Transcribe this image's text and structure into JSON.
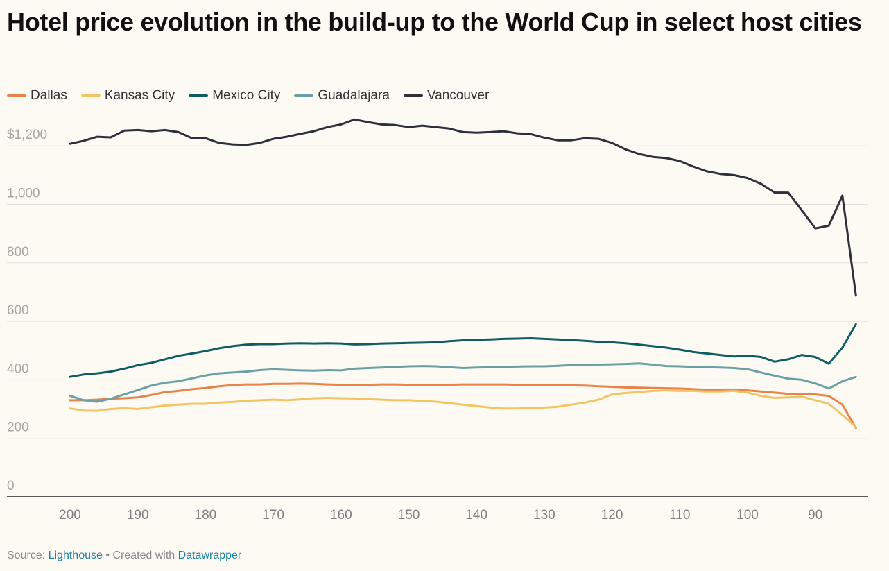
{
  "chart_data": {
    "type": "line",
    "title": "Hotel price evolution in the build-up to the World Cup in select host cities",
    "xlabel": "",
    "ylabel": "",
    "xlim": [
      200,
      84
    ],
    "ylim": [
      0,
      1300
    ],
    "x_ticks": [
      200,
      190,
      180,
      170,
      160,
      150,
      140,
      130,
      120,
      110,
      100,
      90
    ],
    "x_tick_labels": [
      "200",
      "190",
      "180",
      "170",
      "160",
      "150",
      "140",
      "130",
      "120",
      "110",
      "100",
      "90"
    ],
    "y_ticks": [
      0,
      200,
      400,
      600,
      800,
      1000,
      1200
    ],
    "y_tick_labels": [
      "0",
      "200",
      "400",
      "600",
      "800",
      "1,000",
      "$1,200"
    ],
    "grid": true,
    "legend_position": "top-left",
    "x": [
      200,
      198,
      196,
      194,
      192,
      190,
      188,
      186,
      184,
      182,
      180,
      178,
      176,
      174,
      172,
      170,
      168,
      166,
      164,
      162,
      160,
      158,
      156,
      154,
      152,
      150,
      148,
      146,
      144,
      142,
      140,
      138,
      136,
      134,
      132,
      130,
      128,
      126,
      124,
      122,
      120,
      118,
      116,
      114,
      112,
      110,
      108,
      106,
      104,
      102,
      100,
      98,
      96,
      94,
      92,
      90,
      88,
      86,
      84
    ],
    "series": [
      {
        "name": "Dallas",
        "color": "#e8834a",
        "values": [
          330,
          330,
          332,
          335,
          337,
          340,
          348,
          358,
          362,
          368,
          372,
          378,
          382,
          384,
          384,
          386,
          386,
          387,
          386,
          384,
          383,
          382,
          383,
          384,
          384,
          383,
          382,
          382,
          383,
          384,
          384,
          384,
          384,
          383,
          383,
          382,
          382,
          381,
          380,
          378,
          376,
          374,
          373,
          372,
          371,
          370,
          368,
          366,
          365,
          365,
          364,
          360,
          356,
          352,
          350,
          350,
          345,
          315,
          235
        ]
      },
      {
        "name": "Kansas City",
        "color": "#f2c464",
        "values": [
          302,
          295,
          294,
          300,
          303,
          300,
          306,
          312,
          315,
          318,
          318,
          322,
          324,
          328,
          330,
          332,
          330,
          333,
          337,
          338,
          337,
          336,
          334,
          332,
          330,
          330,
          328,
          325,
          320,
          315,
          310,
          305,
          302,
          302,
          304,
          305,
          308,
          315,
          322,
          332,
          350,
          355,
          358,
          362,
          364,
          362,
          362,
          360,
          360,
          362,
          356,
          345,
          338,
          340,
          342,
          330,
          318,
          280,
          238
        ]
      },
      {
        "name": "Mexico City",
        "color": "#0f5c63",
        "values": [
          410,
          418,
          422,
          428,
          438,
          450,
          458,
          470,
          482,
          490,
          498,
          508,
          515,
          520,
          522,
          522,
          524,
          525,
          524,
          525,
          524,
          521,
          522,
          524,
          525,
          526,
          527,
          528,
          532,
          535,
          537,
          538,
          540,
          541,
          542,
          540,
          538,
          536,
          533,
          530,
          528,
          525,
          520,
          515,
          510,
          503,
          495,
          490,
          485,
          480,
          482,
          478,
          462,
          470,
          485,
          478,
          455,
          510,
          590
        ]
      },
      {
        "name": "Guadalajara",
        "color": "#6ba1a6",
        "values": [
          345,
          330,
          325,
          335,
          350,
          365,
          380,
          390,
          395,
          405,
          415,
          422,
          425,
          428,
          433,
          436,
          434,
          432,
          431,
          433,
          432,
          438,
          440,
          442,
          444,
          446,
          447,
          446,
          443,
          440,
          442,
          443,
          444,
          445,
          446,
          446,
          448,
          450,
          452,
          452,
          453,
          454,
          456,
          452,
          447,
          446,
          444,
          443,
          442,
          440,
          436,
          425,
          414,
          404,
          400,
          388,
          370,
          395,
          410
        ]
      },
      {
        "name": "Vancouver",
        "color": "#2d2f3a",
        "values": [
          1207,
          1217,
          1231,
          1229,
          1252,
          1254,
          1250,
          1254,
          1247,
          1226,
          1226,
          1210,
          1205,
          1203,
          1210,
          1224,
          1231,
          1241,
          1250,
          1264,
          1273,
          1290,
          1281,
          1273,
          1271,
          1264,
          1269,
          1264,
          1259,
          1247,
          1245,
          1247,
          1250,
          1243,
          1240,
          1228,
          1219,
          1219,
          1226,
          1224,
          1210,
          1188,
          1172,
          1162,
          1158,
          1148,
          1129,
          1113,
          1104,
          1100,
          1090,
          1070,
          1040,
          1040,
          980,
          918,
          927,
          1030,
          688
        ]
      }
    ]
  },
  "footer": {
    "source_prefix": "Source: ",
    "source_link": "Lighthouse",
    "separator": " • Created with ",
    "tool_link": "Datawrapper"
  }
}
